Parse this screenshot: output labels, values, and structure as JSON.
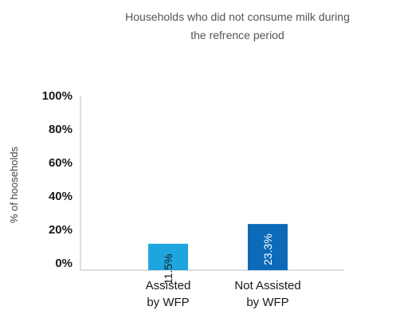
{
  "chart_data": {
    "type": "bar",
    "title_lines": [
      "Households who did not consume milk during",
      "the refrence period"
    ],
    "ylabel": "% of hooseholds",
    "ylim": [
      0,
      100
    ],
    "yticks": [
      "0%",
      "20%",
      "40%",
      "60%",
      "80%",
      "100%"
    ],
    "ytick_values": [
      0,
      20,
      40,
      60,
      80,
      100
    ],
    "categories": [
      {
        "lines": [
          "Assisted",
          "by WFP"
        ]
      },
      {
        "lines": [
          "Not Assisted",
          "by WFP"
        ]
      }
    ],
    "values": [
      11.5,
      23.3
    ],
    "labels": [
      "11.5%",
      "23.3%"
    ],
    "colors": [
      "#1ea5e0",
      "#0c6ab8"
    ],
    "label_colors": [
      "#1a1a1a",
      "#ffffff"
    ],
    "grid": false,
    "legend": "none"
  }
}
